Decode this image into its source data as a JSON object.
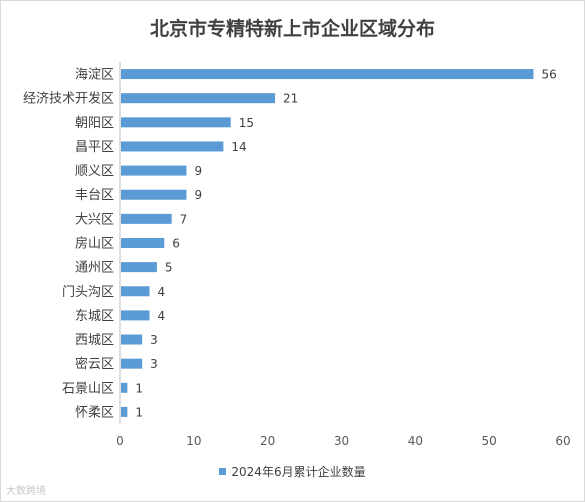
{
  "chart_data": {
    "type": "bar",
    "orientation": "horizontal",
    "title": "北京市专精特新上市企业区域分布",
    "categories": [
      "海淀区",
      "经济技术开发区",
      "朝阳区",
      "昌平区",
      "顺义区",
      "丰台区",
      "大兴区",
      "房山区",
      "通州区",
      "门头沟区",
      "东城区",
      "西城区",
      "密云区",
      "石景山区",
      "怀柔区"
    ],
    "series": [
      {
        "name": "2024年6月累计企业数量",
        "values": [
          56,
          21,
          15,
          14,
          9,
          9,
          7,
          6,
          5,
          4,
          4,
          3,
          3,
          1,
          1
        ]
      }
    ],
    "xlim": [
      0,
      60
    ],
    "xticks": [
      0,
      10,
      20,
      30,
      40,
      50,
      60
    ],
    "grid": false,
    "legend_position": "bottom",
    "data_labels": true,
    "bar_color": "#5b9bd5"
  },
  "watermark": "大数跨境"
}
